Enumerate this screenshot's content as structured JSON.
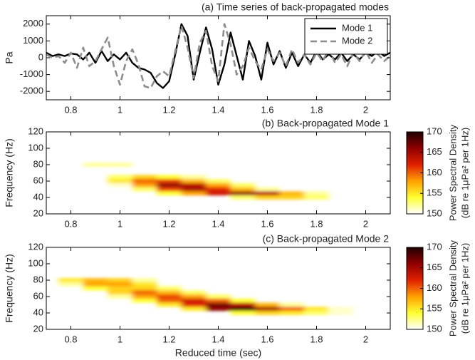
{
  "chart_data": [
    {
      "type": "line",
      "title": "(a) Time series of back-propagated modes",
      "ylabel": "Pa",
      "x": [
        0.7,
        0.725,
        0.75,
        0.775,
        0.8,
        0.825,
        0.85,
        0.875,
        0.9,
        0.925,
        0.95,
        0.975,
        1.0,
        1.025,
        1.05,
        1.075,
        1.1,
        1.125,
        1.15,
        1.175,
        1.2,
        1.225,
        1.25,
        1.275,
        1.3,
        1.325,
        1.35,
        1.375,
        1.4,
        1.425,
        1.45,
        1.475,
        1.5,
        1.525,
        1.55,
        1.575,
        1.6,
        1.625,
        1.65,
        1.675,
        1.7,
        1.725,
        1.75,
        1.775,
        1.8,
        1.825,
        1.85,
        1.875,
        1.9,
        1.925,
        1.95,
        1.975,
        2.0,
        2.025,
        2.05,
        2.075,
        2.1
      ],
      "series": [
        {
          "name": "Mode 1",
          "color": "#000000",
          "linestyle": "solid",
          "values": [
            300,
            100,
            200,
            100,
            250,
            200,
            -100,
            300,
            -300,
            400,
            -200,
            200,
            -100,
            300,
            -300,
            -600,
            -700,
            -900,
            -1500,
            -1800,
            -1400,
            200,
            2000,
            1300,
            -1300,
            300,
            1800,
            500,
            -1600,
            -400,
            1500,
            100,
            -1300,
            1000,
            100,
            -1300,
            900,
            -400,
            400,
            -600,
            300,
            -500,
            200,
            -300,
            400,
            -100,
            200,
            -100,
            300,
            -200,
            200,
            -100,
            300,
            100,
            400,
            100,
            300
          ]
        },
        {
          "name": "Mode 2",
          "color": "#8c8c8c",
          "linestyle": "dashed",
          "values": [
            200,
            0,
            100,
            -300,
            300,
            -600,
            600,
            -500,
            -200,
            500,
            1200,
            -500,
            -1600,
            -200,
            500,
            -400,
            -1700,
            -1800,
            -1100,
            -800,
            -1100,
            400,
            1900,
            600,
            -1200,
            900,
            1600,
            -500,
            -1400,
            2000,
            800,
            -1000,
            -500,
            600,
            -200,
            -700,
            500,
            -200,
            300,
            -500,
            500,
            -300,
            200,
            -400,
            300,
            -200,
            500,
            -300,
            200,
            -500,
            300,
            -200,
            400,
            -300,
            200,
            -200,
            100
          ]
        }
      ],
      "xlim": [
        0.7,
        2.1
      ],
      "xticks": [
        0.8,
        1,
        1.2,
        1.4,
        1.6,
        1.8,
        2
      ],
      "ylim": [
        -2500,
        2500
      ],
      "yticks": [
        -2000,
        -1000,
        0,
        1000,
        2000
      ],
      "legend": "upper right"
    },
    {
      "type": "heatmap",
      "title": "(b) Back-propagated Mode 1",
      "ylabel": "Frequency (Hz)",
      "x": [
        0.8,
        0.9,
        1.0,
        1.1,
        1.2,
        1.3,
        1.4,
        1.5,
        1.6,
        1.7,
        1.8,
        1.9
      ],
      "y": [
        80,
        75,
        70,
        65,
        60,
        55,
        50,
        45,
        40
      ],
      "values": [
        [
          null,
          152,
          152,
          null,
          null,
          null,
          null,
          null,
          null,
          null,
          null,
          null
        ],
        [
          null,
          null,
          null,
          null,
          null,
          null,
          null,
          null,
          null,
          null,
          null,
          null
        ],
        [
          null,
          null,
          null,
          null,
          null,
          null,
          null,
          null,
          null,
          null,
          null,
          null
        ],
        [
          null,
          null,
          153,
          156,
          154,
          152,
          null,
          null,
          null,
          null,
          null,
          null
        ],
        [
          null,
          null,
          155,
          160,
          161,
          157,
          153,
          null,
          null,
          null,
          null,
          null
        ],
        [
          null,
          null,
          151,
          158,
          166,
          164,
          158,
          153,
          null,
          null,
          null,
          null
        ],
        [
          null,
          null,
          null,
          153,
          161,
          165,
          162,
          157,
          152,
          null,
          null,
          null
        ],
        [
          null,
          null,
          null,
          null,
          154,
          158,
          163,
          166,
          164,
          157,
          152,
          null
        ],
        [
          null,
          null,
          null,
          null,
          null,
          null,
          null,
          153,
          156,
          156,
          153,
          null
        ]
      ],
      "xlim": [
        0.7,
        2.1
      ],
      "xticks": [
        0.8,
        1,
        1.2,
        1.4,
        1.6,
        1.8,
        2
      ],
      "ylim": [
        20,
        120
      ],
      "yticks": [
        20,
        40,
        60,
        80,
        100,
        120
      ],
      "clim": [
        150,
        170
      ],
      "cticks": [
        150,
        155,
        160,
        165,
        170
      ],
      "colormap": [
        "#ffffff",
        "#ffff30",
        "#ffa000",
        "#e02000",
        "#900000",
        "#200000"
      ],
      "colorbar_label": [
        "Power Spectral Density",
        "(dB re 1μPa² per 1Hz)"
      ]
    },
    {
      "type": "heatmap",
      "title": "(c) Back-propagated Mode 2",
      "ylabel": "Frequency (Hz)",
      "xlabel": "Reduced time (sec)",
      "x": [
        0.8,
        0.9,
        1.0,
        1.1,
        1.2,
        1.3,
        1.4,
        1.5,
        1.6,
        1.7,
        1.8,
        1.9
      ],
      "y": [
        80,
        75,
        70,
        65,
        60,
        55,
        50,
        45,
        40
      ],
      "values": [
        [
          155,
          157,
          156,
          152,
          null,
          null,
          null,
          null,
          null,
          null,
          null,
          null
        ],
        [
          152,
          158,
          158,
          155,
          null,
          null,
          null,
          null,
          null,
          null,
          null,
          null
        ],
        [
          null,
          154,
          156,
          156,
          153,
          null,
          null,
          null,
          null,
          null,
          null,
          null
        ],
        [
          null,
          null,
          156,
          160,
          157,
          153,
          null,
          null,
          null,
          null,
          null,
          null
        ],
        [
          null,
          null,
          152,
          158,
          161,
          158,
          153,
          null,
          null,
          null,
          null,
          null
        ],
        [
          null,
          null,
          null,
          154,
          160,
          163,
          160,
          154,
          null,
          null,
          null,
          null
        ],
        [
          null,
          null,
          null,
          null,
          155,
          162,
          167,
          164,
          157,
          152,
          null,
          null
        ],
        [
          null,
          null,
          null,
          null,
          null,
          155,
          166,
          170,
          165,
          160,
          155,
          151
        ],
        [
          null,
          null,
          null,
          null,
          null,
          null,
          null,
          154,
          156,
          155,
          153,
          151
        ]
      ],
      "xlim": [
        0.7,
        2.1
      ],
      "xticks": [
        0.8,
        1,
        1.2,
        1.4,
        1.6,
        1.8,
        2
      ],
      "ylim": [
        20,
        120
      ],
      "yticks": [
        20,
        40,
        60,
        80,
        100,
        120
      ],
      "clim": [
        150,
        170
      ],
      "cticks": [
        150,
        155,
        160,
        165,
        170
      ],
      "colormap": [
        "#ffffff",
        "#ffff30",
        "#ffa000",
        "#e02000",
        "#900000",
        "#200000"
      ],
      "colorbar_label": [
        "Power Spectral Density",
        "(dB re 1μPa² per 1Hz)"
      ]
    }
  ]
}
